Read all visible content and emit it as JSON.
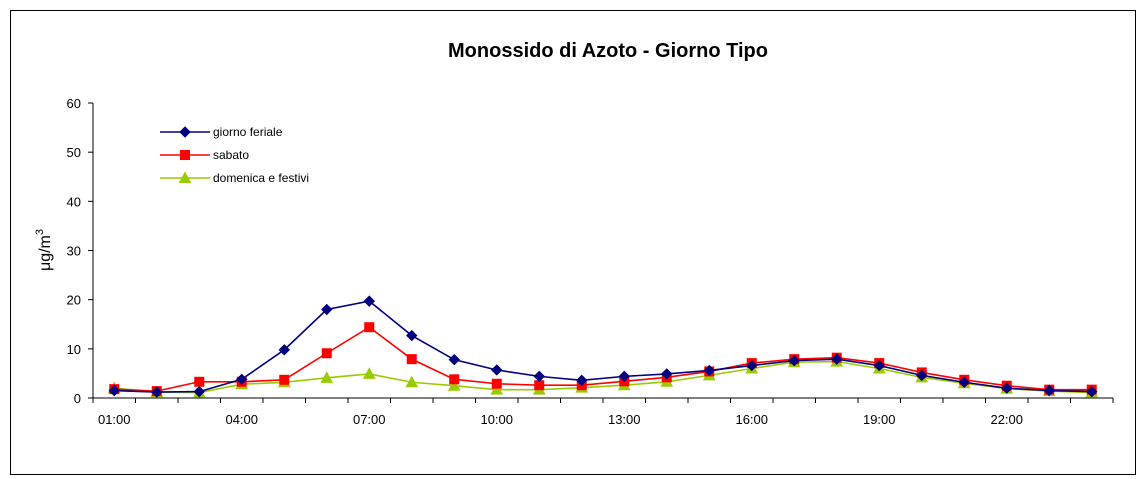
{
  "chart_data": {
    "type": "line",
    "title": "Monossido di Azoto -  Giorno Tipo",
    "ylabel": "μg/m",
    "ylabel_superscript": "3",
    "xlabel": "",
    "ylim": [
      0,
      60
    ],
    "yticks": [
      "0",
      "10",
      "20",
      "30",
      "40",
      "50",
      "60"
    ],
    "x": [
      "01:00",
      "02:00",
      "03:00",
      "04:00",
      "05:00",
      "06:00",
      "07:00",
      "08:00",
      "09:00",
      "10:00",
      "11:00",
      "12:00",
      "13:00",
      "14:00",
      "15:00",
      "16:00",
      "17:00",
      "18:00",
      "19:00",
      "20:00",
      "21:00",
      "22:00",
      "23:00",
      "24:00"
    ],
    "xtick_labels": [
      "01:00",
      "04:00",
      "07:00",
      "10:00",
      "13:00",
      "16:00",
      "19:00",
      "22:00"
    ],
    "grid": false,
    "legend_position": "top-left",
    "series": [
      {
        "name": "giorno feriale",
        "color": "#000080",
        "marker": "diamond",
        "values": [
          1.5,
          1.2,
          1.3,
          3.8,
          9.8,
          18.0,
          19.7,
          12.7,
          7.8,
          5.7,
          4.4,
          3.6,
          4.4,
          4.9,
          5.6,
          6.6,
          7.6,
          7.9,
          6.6,
          4.6,
          3.2,
          2.0,
          1.5,
          1.3
        ]
      },
      {
        "name": "sabato",
        "color": "#ff0000",
        "marker": "square",
        "values": [
          1.8,
          1.4,
          3.3,
          3.3,
          3.7,
          9.1,
          14.4,
          7.9,
          3.8,
          2.9,
          2.6,
          2.6,
          3.4,
          4.2,
          5.4,
          7.1,
          7.9,
          8.2,
          7.1,
          5.2,
          3.7,
          2.5,
          1.7,
          1.7
        ]
      },
      {
        "name": "domenica e festivi",
        "color": "#99cc00",
        "marker": "triangle",
        "values": [
          2.0,
          1.2,
          1.1,
          2.8,
          3.2,
          4.1,
          4.9,
          3.2,
          2.5,
          1.7,
          1.7,
          2.1,
          2.6,
          3.3,
          4.6,
          6.0,
          7.3,
          7.4,
          6.0,
          4.2,
          3.0,
          1.9,
          1.4,
          1.1
        ]
      }
    ]
  }
}
